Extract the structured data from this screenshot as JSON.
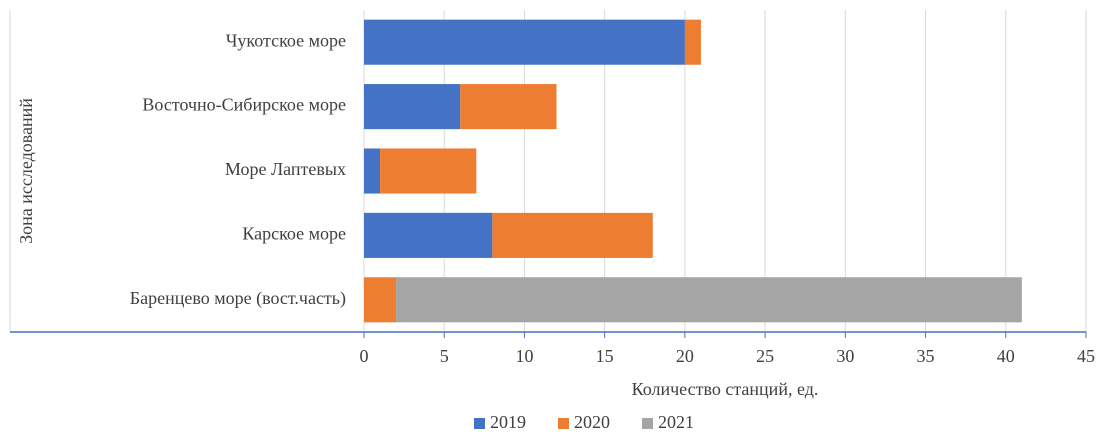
{
  "chart_data": {
    "type": "stacked_barh",
    "categories": [
      "Чукотское море",
      "Восточно-Сибирское море",
      "Море Лаптевых",
      "Карское море",
      "Баренцево море (вост.часть)"
    ],
    "series": [
      {
        "name": "2019",
        "color": "#4472c4",
        "values": [
          20,
          6,
          1,
          8,
          0
        ]
      },
      {
        "name": "2020",
        "color": "#ed7d31",
        "values": [
          1,
          6,
          6,
          10,
          2
        ]
      },
      {
        "name": "2021",
        "color": "#a5a5a5",
        "values": [
          0,
          0,
          0,
          0,
          39
        ]
      }
    ],
    "xlabel": "Количество станций, ед.",
    "ylabel": "Зона исследований",
    "xlim": [
      0,
      45
    ],
    "xticks": [
      0,
      5,
      10,
      15,
      20,
      25,
      30,
      35,
      40,
      45
    ],
    "grid": true,
    "legend": "bottom"
  }
}
